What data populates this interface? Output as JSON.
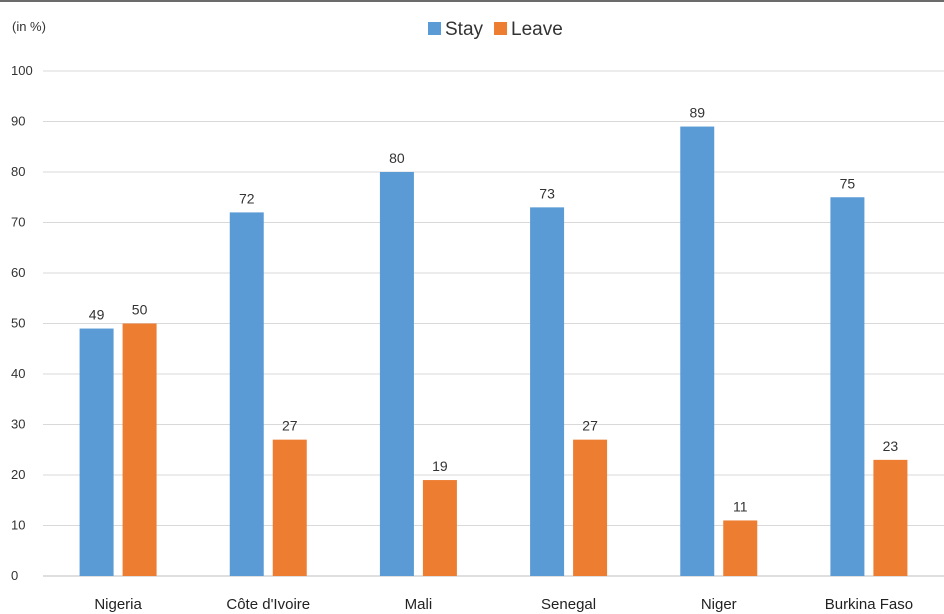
{
  "chart_data": {
    "type": "bar",
    "unit_label": "(in %)",
    "categories": [
      "Nigeria",
      "Côte d'Ivoire",
      "Mali",
      "Senegal",
      "Niger",
      "Burkina Faso"
    ],
    "series": [
      {
        "name": "Stay",
        "color": "#5b9bd5",
        "values": [
          49,
          72,
          80,
          73,
          89,
          75
        ]
      },
      {
        "name": "Leave",
        "color": "#ed7d31",
        "values": [
          50,
          27,
          19,
          27,
          11,
          23
        ]
      }
    ],
    "ylim": [
      0,
      100
    ],
    "yticks": [
      0,
      10,
      20,
      30,
      40,
      50,
      60,
      70,
      80,
      90,
      100
    ],
    "grid": true,
    "legend_position": "top-center",
    "data_labels": true
  }
}
